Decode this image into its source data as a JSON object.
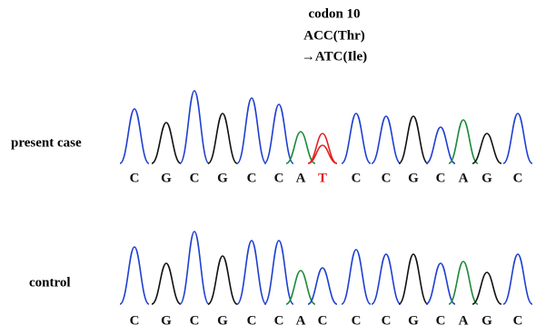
{
  "annotation": {
    "lines": [
      "codon 10",
      "ACC(Thr)",
      "→ATC(Ile)"
    ]
  },
  "rows": [
    {
      "label": "present case",
      "bases": [
        "C",
        "G",
        "C",
        "G",
        "C",
        "C",
        "A",
        "T",
        "C",
        "C",
        "G",
        "C",
        "A",
        "G",
        "C"
      ]
    },
    {
      "label": "control",
      "bases": [
        "C",
        "G",
        "C",
        "G",
        "C",
        "C",
        "A",
        "C",
        "C",
        "C",
        "G",
        "C",
        "A",
        "G",
        "C"
      ]
    }
  ]
}
